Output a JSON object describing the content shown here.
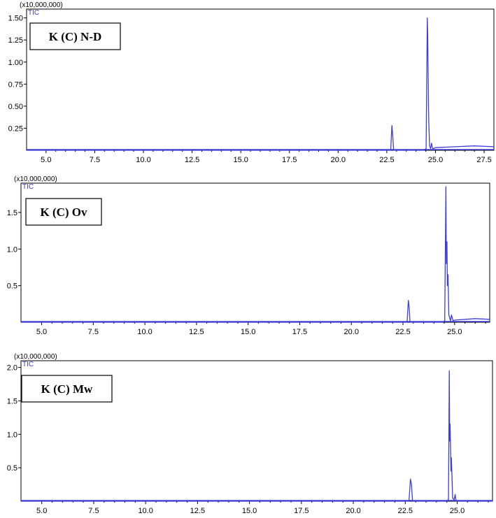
{
  "chart_data": [
    {
      "type": "line",
      "scale_label": "(x10,000,000)",
      "series_label": "TIC",
      "sample_label": "K (C) N-D",
      "xlim": [
        4.0,
        28.0
      ],
      "ylim": [
        0,
        1.6
      ],
      "x_ticks": [
        "5.0",
        "7.5",
        "10.0",
        "12.5",
        "15.0",
        "17.5",
        "20.0",
        "22.5",
        "25.0",
        "27.5"
      ],
      "y_ticks": [
        "0.25",
        "0.50",
        "0.75",
        "1.00",
        "1.25",
        "1.50"
      ],
      "series": [
        {
          "x": [
            4.0,
            21.0,
            22.7,
            22.76,
            22.8,
            22.85,
            24.4,
            24.52,
            24.58,
            24.6,
            24.64,
            24.66,
            24.7,
            24.75,
            24.8,
            24.85,
            24.9,
            25.0,
            26.0,
            27.0,
            28.0
          ],
          "y": [
            0.0,
            0.0,
            0.0,
            0.28,
            0.18,
            0.0,
            0.0,
            0.02,
            1.5,
            1.3,
            0.5,
            0.3,
            0.05,
            0.02,
            0.08,
            0.02,
            0.02,
            0.03,
            0.04,
            0.05,
            0.04
          ]
        }
      ]
    },
    {
      "type": "line",
      "scale_label": "(x10,000,000)",
      "series_label": "TIC",
      "sample_label": "K (C) Ov",
      "xlim": [
        4.0,
        26.7
      ],
      "ylim": [
        0,
        1.9
      ],
      "x_ticks": [
        "5.0",
        "7.5",
        "10.0",
        "12.5",
        "15.0",
        "17.5",
        "20.0",
        "22.5",
        "25.0"
      ],
      "y_ticks": [
        "0.5",
        "1.0",
        "1.5"
      ],
      "series": [
        {
          "x": [
            4.0,
            22.7,
            22.76,
            22.8,
            22.84,
            24.4,
            24.52,
            24.58,
            24.6,
            24.63,
            24.65,
            24.68,
            24.72,
            24.8,
            24.85,
            24.92,
            25.0,
            26.0,
            26.7
          ],
          "y": [
            0.0,
            0.0,
            0.3,
            0.2,
            0.0,
            0.0,
            0.02,
            1.85,
            0.8,
            1.1,
            0.5,
            0.65,
            0.1,
            0.02,
            0.1,
            0.02,
            0.03,
            0.05,
            0.04
          ]
        }
      ]
    },
    {
      "type": "line",
      "scale_label": "(x10,000,000)",
      "series_label": "TIC",
      "sample_label": "K (C) Mw",
      "xlim": [
        4.0,
        26.7
      ],
      "ylim": [
        0,
        2.1
      ],
      "x_ticks": [
        "5.0",
        "7.5",
        "10.0",
        "12.5",
        "15.0",
        "17.5",
        "20.0",
        "22.5",
        "25.0"
      ],
      "y_ticks": [
        "0.5",
        "1.0",
        "1.5",
        "2.0"
      ],
      "series": [
        {
          "x": [
            4.0,
            22.68,
            22.75,
            22.8,
            22.85,
            24.5,
            24.58,
            24.62,
            24.64,
            24.66,
            24.7,
            24.72,
            24.78,
            24.85,
            24.9,
            24.95,
            26.7
          ],
          "y": [
            0.0,
            0.0,
            0.33,
            0.25,
            0.0,
            0.0,
            0.03,
            1.95,
            0.9,
            1.15,
            0.45,
            0.65,
            0.05,
            0.02,
            0.1,
            0.0,
            0.0
          ]
        }
      ]
    }
  ]
}
